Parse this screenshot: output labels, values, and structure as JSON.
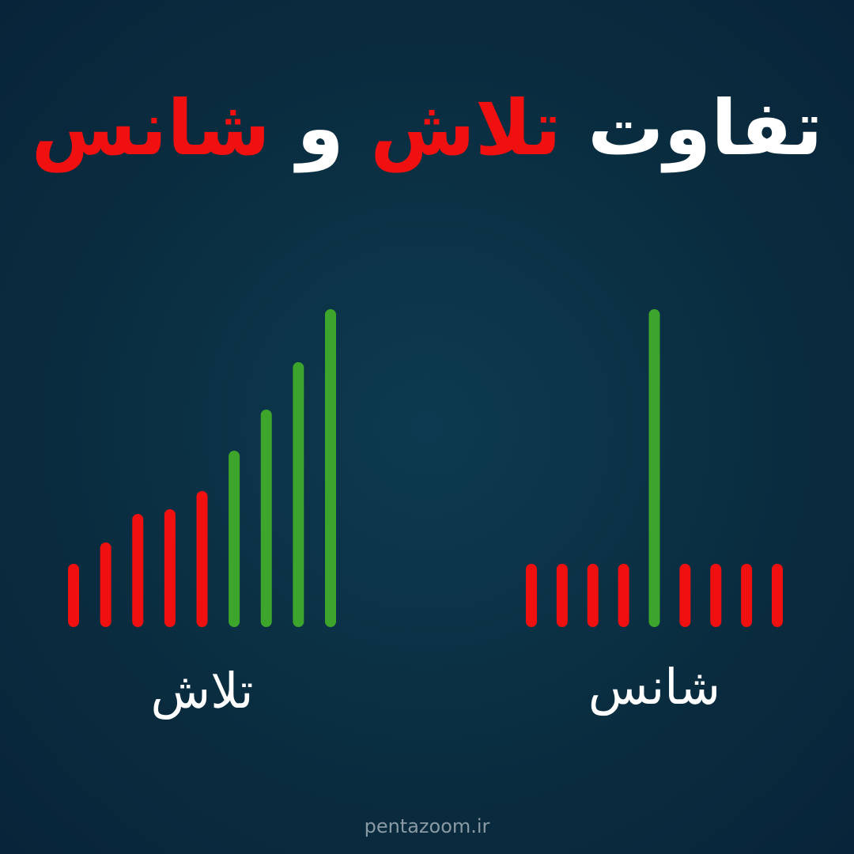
{
  "title": [
    {
      "text": "تفاوت",
      "color": "#ffffff"
    },
    {
      "text": "تلاش",
      "color": "#f01010"
    },
    {
      "text": "و",
      "color": "#ffffff"
    },
    {
      "text": "شانس",
      "color": "#f01010"
    }
  ],
  "chart_data": [
    {
      "type": "bar",
      "title": "تلاش",
      "categories": [
        null,
        null,
        null,
        null,
        null,
        null,
        null,
        null,
        null
      ],
      "values": [
        73,
        100,
        136,
        142,
        165,
        216,
        268,
        328,
        395
      ],
      "colors": [
        "#f01010",
        "#f01010",
        "#f01010",
        "#f01010",
        "#f01010",
        "#3da52b",
        "#3da52b",
        "#3da52b",
        "#3da52b"
      ],
      "ylim": [
        0,
        400
      ]
    },
    {
      "type": "bar",
      "title": "شانس",
      "categories": [
        null,
        null,
        null,
        null,
        null,
        null,
        null,
        null,
        null
      ],
      "values": [
        73,
        73,
        73,
        73,
        395,
        73,
        73,
        73,
        73
      ],
      "colors": [
        "#f01010",
        "#f01010",
        "#f01010",
        "#f01010",
        "#3da52b",
        "#f01010",
        "#f01010",
        "#f01010",
        "#f01010"
      ],
      "ylim": [
        0,
        400
      ]
    }
  ],
  "footer": "pentazoom.ir"
}
